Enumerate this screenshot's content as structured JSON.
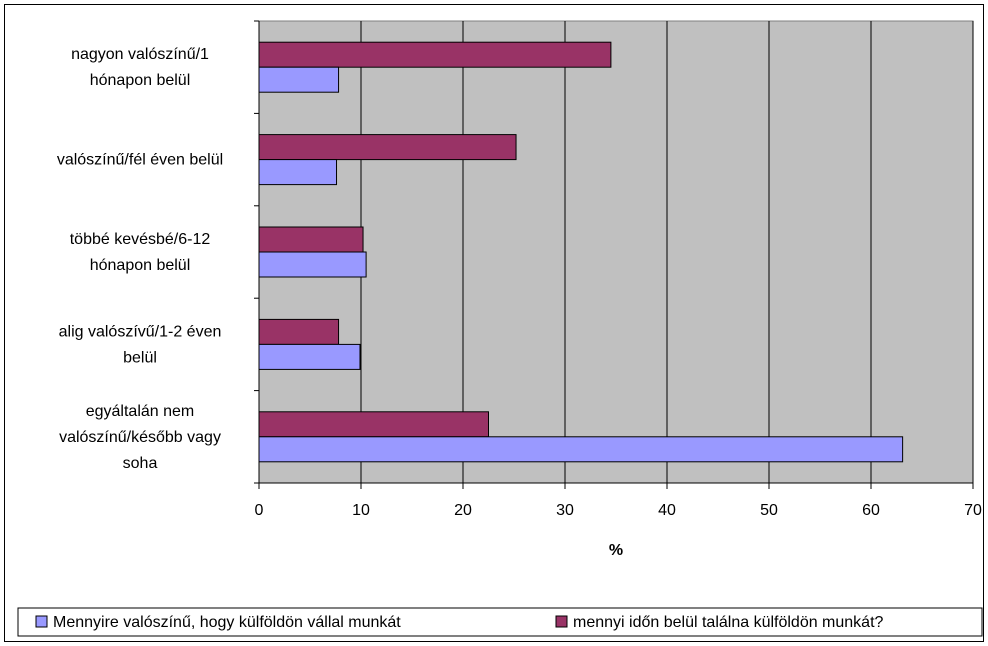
{
  "chart_data": {
    "type": "bar",
    "orientation": "horizontal",
    "categories": [
      [
        "nagyon valószínű/1",
        "hónapon belül"
      ],
      [
        "valószínű/fél éven belül"
      ],
      [
        "többé kevésbé/6-12",
        "hónapon belül"
      ],
      [
        "alig valószívű/1-2 éven",
        "belül"
      ],
      [
        "egyáltalán nem",
        "valószínű/később vagy",
        "soha"
      ]
    ],
    "series": [
      {
        "name": "Mennyire valószínű, hogy külföldön vállal munkát",
        "color": "#9999FF",
        "values": [
          7.8,
          7.6,
          10.5,
          9.9,
          63.1
        ]
      },
      {
        "name": "mennyi időn belül találna külföldön munkát?",
        "color": "#993366",
        "values": [
          34.5,
          25.2,
          10.2,
          7.8,
          22.5
        ]
      }
    ],
    "xlabel": "%",
    "xlim": [
      0,
      70
    ],
    "xticks": [
      0,
      10,
      20,
      30,
      40,
      50,
      60,
      70
    ],
    "plot_background": "#C0C0C0",
    "grid": "vertical",
    "legend_position": "bottom"
  }
}
